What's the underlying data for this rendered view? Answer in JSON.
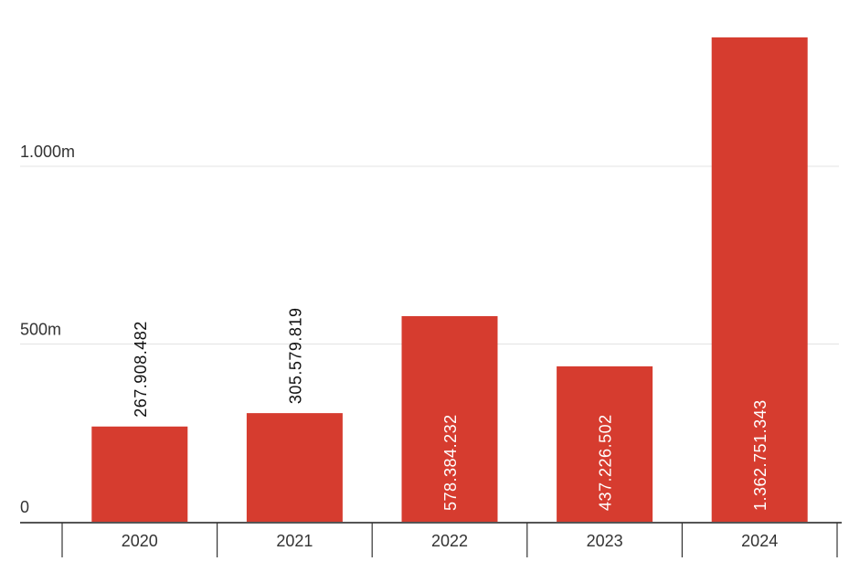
{
  "chart_data": {
    "type": "bar",
    "categories": [
      "2020",
      "2021",
      "2022",
      "2023",
      "2024"
    ],
    "values": [
      267908482,
      305579819,
      578384232,
      437226502,
      1362751343
    ],
    "value_labels": [
      "267.908.482",
      "305.579.819",
      "578.384.232",
      "437.226.502",
      "1.362.751.343"
    ],
    "y_ticks": [
      {
        "value": 0,
        "label": "0"
      },
      {
        "value": 500000000,
        "label": "500m"
      },
      {
        "value": 1000000000,
        "label": "1.000m"
      }
    ],
    "ylim": [
      0,
      1400000000
    ],
    "grid": true,
    "title": "",
    "xlabel": "",
    "ylabel": "",
    "bar_color": "#d63c2f",
    "label_inside_color": "#ffffff",
    "label_outside_color": "#111111"
  }
}
